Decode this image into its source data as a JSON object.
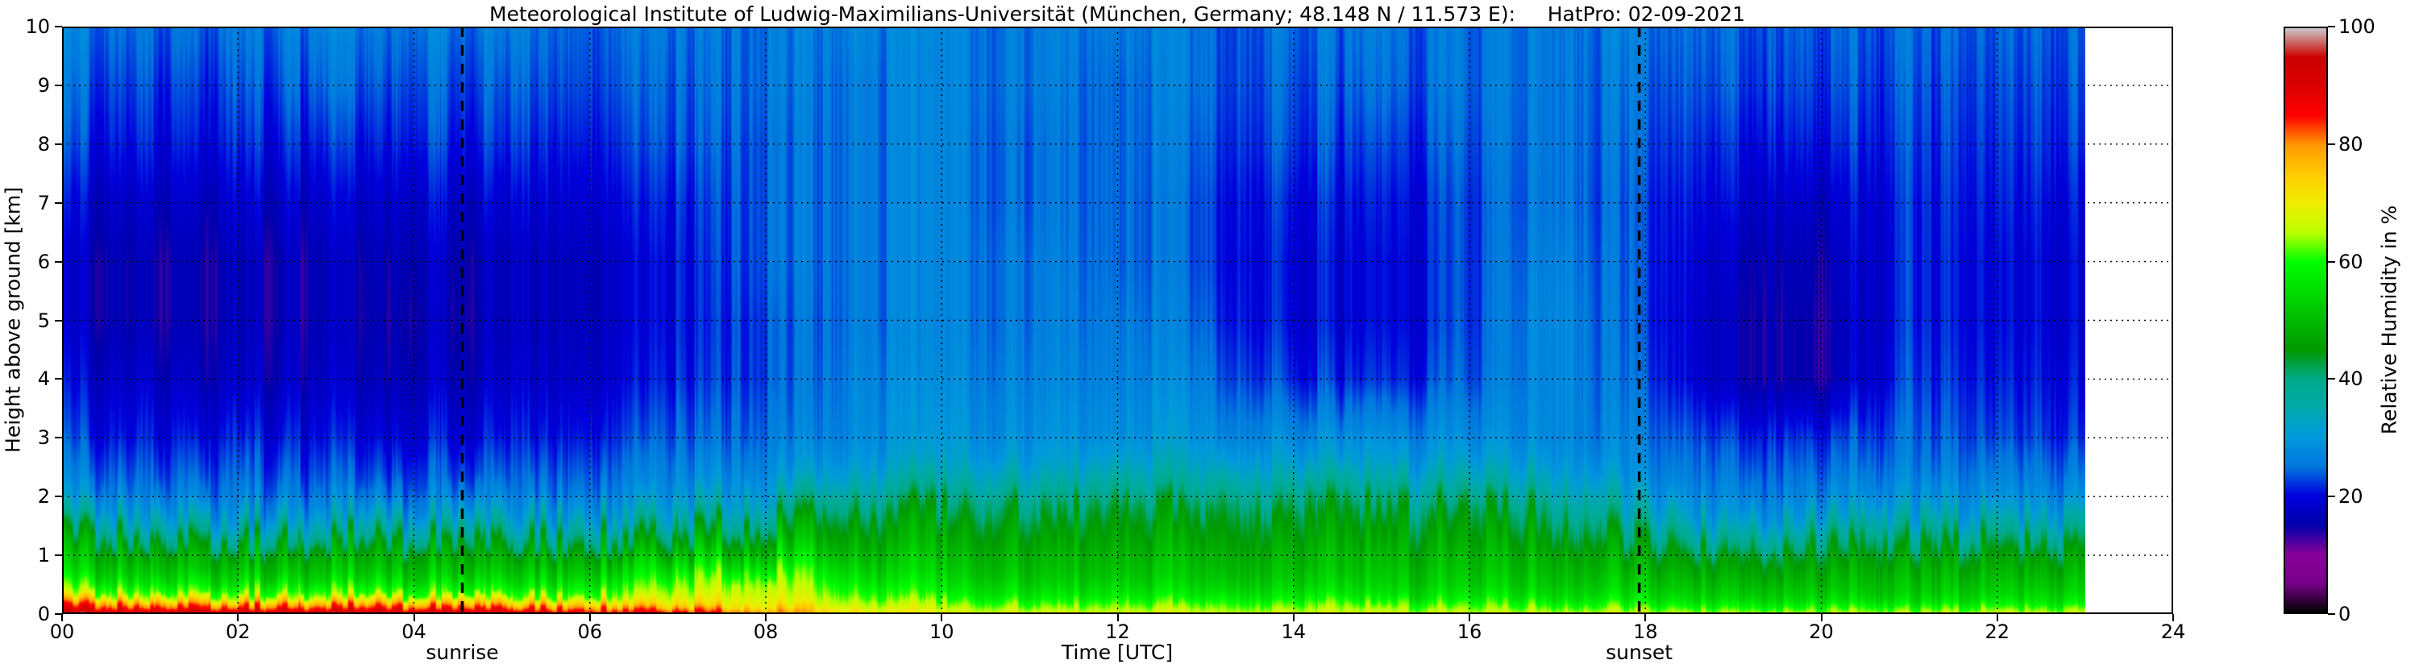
{
  "title": "Meteorological Institute of Ludwig-Maximilians-Universität (München, Germany; 48.148 N / 11.573 E):     HatPro: 02-09-2021",
  "axes": {
    "xlabel": "Time [UTC]",
    "ylabel": "Height above ground [km]",
    "x_ticks": [
      "00",
      "02",
      "04",
      "06",
      "08",
      "10",
      "12",
      "14",
      "16",
      "18",
      "20",
      "22",
      "24"
    ],
    "y_ticks": [
      "0",
      "1",
      "2",
      "3",
      "4",
      "5",
      "6",
      "7",
      "8",
      "9",
      "10"
    ]
  },
  "colorbar": {
    "label": "Relative Humidity in %",
    "ticks": [
      "0",
      "20",
      "40",
      "60",
      "80",
      "100"
    ]
  },
  "annotations": {
    "sunrise": {
      "label": "sunrise",
      "time": 4.55
    },
    "sunset": {
      "label": "sunset",
      "time": 17.93
    }
  },
  "chart_data": {
    "type": "heatmap",
    "title": "Meteorological Institute of Ludwig-Maximilians-Universität (München, Germany; 48.148 N / 11.573 E):     HatPro: 02-09-2021",
    "xlabel": "Time [UTC]",
    "ylabel": "Height above ground [km]",
    "value_label": "Relative Humidity in %",
    "x_range": [
      0,
      24
    ],
    "data_x_range": [
      0,
      23
    ],
    "y_range": [
      0,
      10
    ],
    "value_range": [
      0,
      100
    ],
    "grid_on": true,
    "time_hours": [
      0,
      1,
      2,
      3,
      4,
      5,
      6,
      7,
      8,
      9,
      10,
      11,
      12,
      13,
      14,
      15,
      16,
      17,
      18,
      19,
      20,
      21,
      22,
      23
    ],
    "height_km": [
      0,
      0.15,
      0.3,
      0.6,
      1.0,
      1.4,
      1.8,
      2.2,
      2.6,
      3.0,
      4.0,
      5.0,
      6.0,
      7.0,
      8.0,
      9.0,
      10.0
    ],
    "rh_grid": [
      [
        93,
        93,
        93,
        93,
        93,
        92,
        90,
        88,
        82,
        72,
        68,
        68,
        67,
        67,
        67,
        67,
        66,
        66,
        65,
        65,
        65,
        65,
        66,
        66
      ],
      [
        79,
        79,
        78,
        78,
        77,
        76,
        75,
        73,
        71,
        66,
        63,
        62,
        62,
        62,
        62,
        62,
        61,
        60,
        58,
        58,
        57,
        57,
        58,
        58
      ],
      [
        64,
        64,
        63,
        63,
        62,
        62,
        63,
        67,
        69,
        62,
        58,
        57,
        57,
        57,
        57,
        56,
        56,
        55,
        54,
        53,
        53,
        53,
        54,
        54
      ],
      [
        54,
        54,
        53,
        53,
        53,
        53,
        55,
        61,
        65,
        56,
        53,
        52,
        52,
        52,
        52,
        52,
        52,
        51,
        50,
        49,
        49,
        50,
        50,
        50
      ],
      [
        48,
        48,
        47,
        47,
        47,
        47,
        48,
        51,
        54,
        50,
        49,
        49,
        49,
        49,
        49,
        49,
        49,
        48,
        45,
        44,
        44,
        45,
        45,
        45
      ],
      [
        38,
        37,
        36,
        36,
        36,
        37,
        38,
        42,
        46,
        46,
        46,
        46,
        46,
        46,
        46,
        46,
        46,
        44,
        38,
        36,
        36,
        38,
        37,
        37
      ],
      [
        30,
        29,
        28,
        28,
        28,
        29,
        30,
        33,
        38,
        41,
        42,
        42,
        43,
        43,
        43,
        43,
        43,
        40,
        32,
        29,
        29,
        31,
        30,
        30
      ],
      [
        26,
        25,
        25,
        24,
        24,
        25,
        26,
        28,
        31,
        34,
        36,
        36,
        37,
        37,
        37,
        37,
        36,
        34,
        28,
        26,
        26,
        28,
        27,
        26
      ],
      [
        24,
        23,
        23,
        22,
        22,
        23,
        24,
        26,
        28,
        30,
        31,
        31,
        32,
        32,
        31,
        31,
        31,
        30,
        26,
        24,
        24,
        26,
        25,
        24
      ],
      [
        22,
        21,
        21,
        20,
        20,
        21,
        22,
        24,
        26,
        28,
        29,
        29,
        29,
        29,
        28,
        28,
        28,
        28,
        25,
        22,
        22,
        25,
        23,
        22
      ],
      [
        19,
        18,
        17,
        17,
        17,
        18,
        19,
        21,
        24,
        27,
        27,
        27,
        27,
        26,
        22,
        21,
        24,
        28,
        23,
        16,
        15,
        23,
        21,
        20
      ],
      [
        17,
        16,
        16,
        16,
        16,
        17,
        18,
        20,
        24,
        26,
        26,
        26,
        26,
        24,
        20,
        19,
        23,
        28,
        22,
        16,
        15,
        22,
        20,
        19
      ],
      [
        17,
        16,
        16,
        16,
        17,
        17,
        18,
        20,
        25,
        26,
        26,
        26,
        25,
        23,
        20,
        19,
        23,
        27,
        22,
        17,
        16,
        22,
        20,
        19
      ],
      [
        19,
        18,
        18,
        18,
        19,
        19,
        20,
        21,
        25,
        26,
        26,
        25,
        25,
        23,
        21,
        20,
        23,
        26,
        22,
        19,
        18,
        22,
        21,
        20
      ],
      [
        22,
        21,
        21,
        21,
        22,
        22,
        22,
        23,
        25,
        26,
        26,
        25,
        25,
        24,
        23,
        22,
        24,
        26,
        23,
        21,
        21,
        23,
        22,
        22
      ],
      [
        24,
        23,
        23,
        24,
        24,
        24,
        24,
        24,
        26,
        26,
        26,
        26,
        25,
        25,
        24,
        24,
        25,
        26,
        24,
        23,
        23,
        24,
        23,
        23
      ],
      [
        26,
        25,
        25,
        26,
        26,
        26,
        25,
        25,
        26,
        27,
        26,
        26,
        26,
        25,
        25,
        25,
        25,
        26,
        25,
        24,
        24,
        25,
        24,
        24
      ]
    ],
    "colormap_stops": [
      [
        0.0,
        0,
        0,
        0
      ],
      [
        0.05,
        0.4667,
        0,
        0.5333
      ],
      [
        0.1,
        0.5333,
        0,
        0.6
      ],
      [
        0.15,
        0,
        0,
        0.6667
      ],
      [
        0.2,
        0,
        0,
        0.8667
      ],
      [
        0.25,
        0,
        0.4667,
        0.8667
      ],
      [
        0.3,
        0,
        0.6,
        0.8667
      ],
      [
        0.35,
        0,
        0.6667,
        0.6667
      ],
      [
        0.4,
        0,
        0.6667,
        0.5333
      ],
      [
        0.45,
        0,
        0.6,
        0
      ],
      [
        0.5,
        0,
        0.7333,
        0
      ],
      [
        0.55,
        0,
        0.8667,
        0
      ],
      [
        0.6,
        0,
        1,
        0
      ],
      [
        0.65,
        0.7333,
        1,
        0
      ],
      [
        0.7,
        0.9333,
        0.9333,
        0
      ],
      [
        0.75,
        1,
        0.8,
        0
      ],
      [
        0.8,
        1,
        0.6,
        0
      ],
      [
        0.85,
        1,
        0,
        0
      ],
      [
        0.9,
        0.8667,
        0,
        0
      ],
      [
        0.95,
        0.8,
        0,
        0
      ],
      [
        1.0,
        0.8,
        0.8,
        0.8
      ]
    ]
  }
}
